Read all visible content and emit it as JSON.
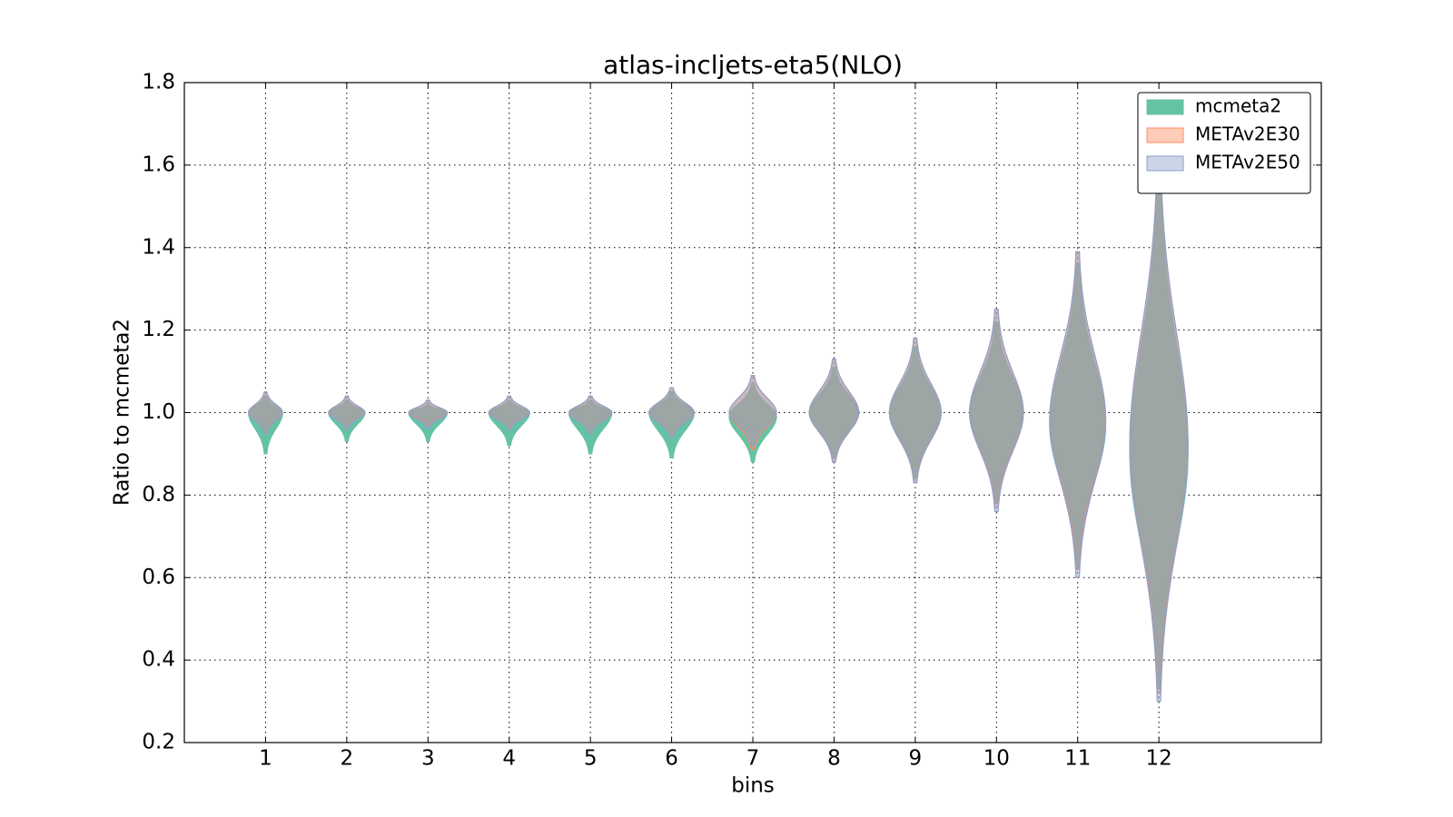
{
  "chart_data": {
    "type": "violin",
    "title": "atlas-incljets-eta5(NLO)",
    "xlabel": "bins",
    "ylabel": "Ratio to mcmeta2",
    "x": [
      1,
      2,
      3,
      4,
      5,
      6,
      7,
      8,
      9,
      10,
      11,
      12
    ],
    "xlim": [
      0,
      14
    ],
    "xticks": [
      1,
      2,
      3,
      4,
      5,
      6,
      7,
      8,
      9,
      10,
      11,
      12
    ],
    "ylim": [
      0.2,
      1.8
    ],
    "yticks": [
      0.2,
      0.4,
      0.6,
      0.8,
      {
        "value": 1.0,
        "label": "1.0"
      },
      1.2,
      1.4,
      1.6,
      1.8
    ],
    "grid": true,
    "legend": "upper right",
    "series": [
      {
        "name": "mcmeta2",
        "color": "#66c2a5",
        "min": [
          0.9,
          0.93,
          0.93,
          0.92,
          0.9,
          0.89,
          0.88,
          0.89,
          0.84,
          0.78,
          0.62,
          0.33
        ],
        "max": [
          1.04,
          1.03,
          1.02,
          1.03,
          1.03,
          1.05,
          1.07,
          1.11,
          1.16,
          1.22,
          1.36,
          1.58
        ],
        "mode": [
          1.0,
          1.0,
          1.0,
          1.0,
          1.0,
          1.0,
          0.99,
          1.0,
          1.0,
          1.0,
          0.97,
          0.9
        ]
      },
      {
        "name": "METAv2E30",
        "color": "#fc8d62",
        "min": [
          0.95,
          0.96,
          0.97,
          0.96,
          0.95,
          0.94,
          0.91,
          0.88,
          0.83,
          0.77,
          0.62,
          0.32
        ],
        "max": [
          1.05,
          1.04,
          1.03,
          1.04,
          1.04,
          1.06,
          1.09,
          1.13,
          1.18,
          1.25,
          1.39,
          1.62
        ],
        "mode": [
          1.0,
          1.0,
          1.0,
          1.0,
          1.0,
          1.0,
          1.0,
          1.0,
          1.0,
          1.0,
          0.98,
          0.92
        ]
      },
      {
        "name": "METAv2E50",
        "color": "#8da0cb",
        "min": [
          0.95,
          0.96,
          0.96,
          0.96,
          0.95,
          0.94,
          0.92,
          0.88,
          0.83,
          0.76,
          0.6,
          0.3
        ],
        "max": [
          1.05,
          1.04,
          1.03,
          1.04,
          1.04,
          1.06,
          1.09,
          1.13,
          1.18,
          1.25,
          1.39,
          1.62
        ],
        "mode": [
          1.0,
          1.0,
          1.0,
          1.0,
          1.0,
          1.0,
          1.0,
          1.0,
          1.0,
          1.0,
          0.98,
          0.92
        ]
      }
    ]
  }
}
